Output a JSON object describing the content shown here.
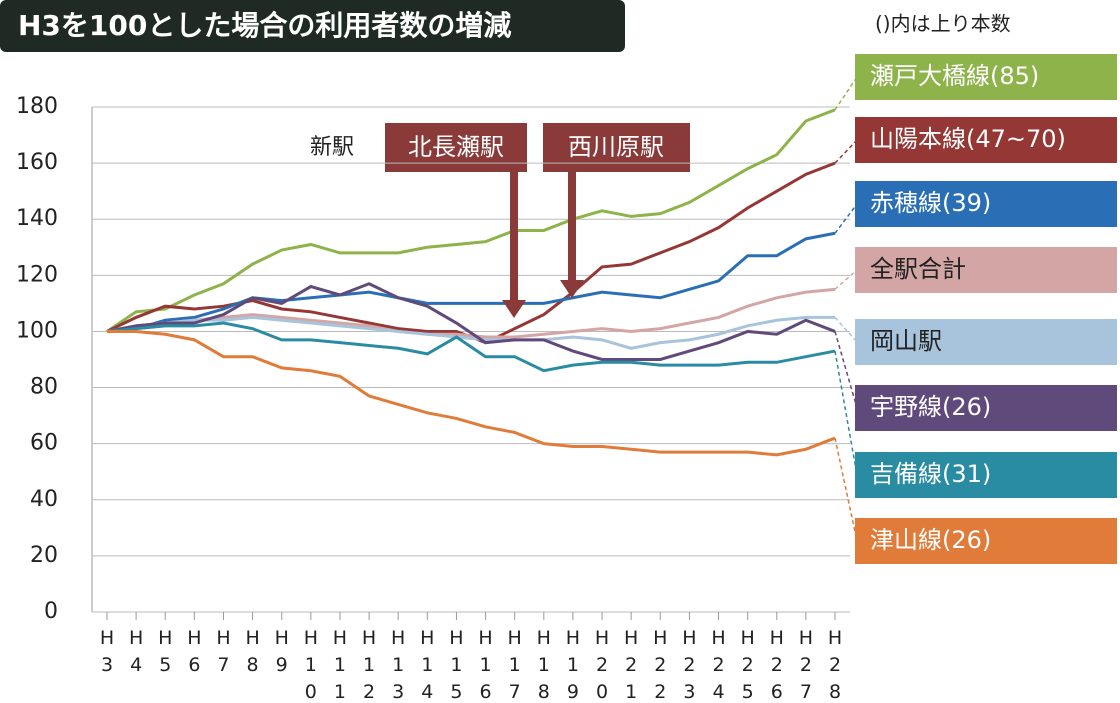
{
  "chart_data": {
    "type": "line",
    "title": "H3を100とした場合の利用者数の増減",
    "note": "()内は上り本数",
    "annotations": {
      "new_station": "新駅",
      "station1": "北長瀬駅",
      "station2": "西川原駅"
    },
    "categories": [
      "H3",
      "H4",
      "H5",
      "H6",
      "H7",
      "H8",
      "H9",
      "H10",
      "H11",
      "H12",
      "H13",
      "H14",
      "H15",
      "H16",
      "H17",
      "H18",
      "H19",
      "H20",
      "H21",
      "H22",
      "H23",
      "H24",
      "H25",
      "H26",
      "H27",
      "H28"
    ],
    "ylim": [
      0,
      180
    ],
    "yticks": [
      0,
      20,
      40,
      60,
      80,
      100,
      120,
      140,
      160,
      180
    ],
    "grid": true,
    "series": [
      {
        "name": "瀬戸大橋線(85)",
        "color": "#8db34a",
        "values": [
          100,
          107,
          108,
          113,
          117,
          124,
          129,
          131,
          128,
          128,
          128,
          130,
          131,
          132,
          136,
          136,
          140,
          143,
          141,
          142,
          146,
          152,
          158,
          163,
          175,
          179
        ]
      },
      {
        "name": "山陽本線(47~70)",
        "color": "#953735",
        "values": [
          100,
          105,
          109,
          108,
          109,
          111,
          108,
          107,
          105,
          103,
          101,
          100,
          100,
          96,
          101,
          106,
          114,
          123,
          124,
          128,
          132,
          137,
          144,
          150,
          156,
          160
        ]
      },
      {
        "name": "赤穂線(39)",
        "color": "#2a6fb5",
        "values": [
          100,
          101,
          104,
          105,
          108,
          112,
          111,
          112,
          113,
          114,
          112,
          110,
          110,
          110,
          110,
          110,
          112,
          114,
          113,
          112,
          115,
          118,
          127,
          127,
          133,
          135
        ]
      },
      {
        "name": "全駅合計",
        "color": "#d4a5a5",
        "values": [
          100,
          102,
          103,
          104,
          105,
          106,
          105,
          104,
          103,
          102,
          100,
          99,
          99,
          98,
          98,
          99,
          100,
          101,
          100,
          101,
          103,
          105,
          109,
          112,
          114,
          115
        ]
      },
      {
        "name": "岡山駅",
        "color": "#a7c4dc",
        "values": [
          100,
          102,
          103,
          104,
          104,
          105,
          104,
          103,
          102,
          101,
          100,
          99,
          98,
          97,
          97,
          97,
          98,
          97,
          94,
          96,
          97,
          99,
          102,
          104,
          105,
          105
        ]
      },
      {
        "name": "宇野線(26)",
        "color": "#604a7b",
        "values": [
          100,
          102,
          103,
          103,
          106,
          112,
          110,
          116,
          113,
          117,
          112,
          109,
          103,
          96,
          97,
          97,
          93,
          90,
          90,
          90,
          93,
          96,
          100,
          99,
          104,
          100
        ]
      },
      {
        "name": "吉備線(31)",
        "color": "#2a8ca3",
        "values": [
          100,
          101,
          102,
          102,
          103,
          101,
          97,
          97,
          96,
          95,
          94,
          92,
          98,
          91,
          91,
          86,
          88,
          89,
          89,
          88,
          88,
          88,
          89,
          89,
          91,
          93
        ]
      },
      {
        "name": "津山線(26)",
        "color": "#e07b39",
        "values": [
          100,
          100,
          99,
          97,
          91,
          91,
          87,
          86,
          84,
          77,
          74,
          71,
          69,
          66,
          64,
          60,
          59,
          59,
          58,
          57,
          57,
          57,
          57,
          56,
          58,
          62
        ]
      }
    ]
  }
}
